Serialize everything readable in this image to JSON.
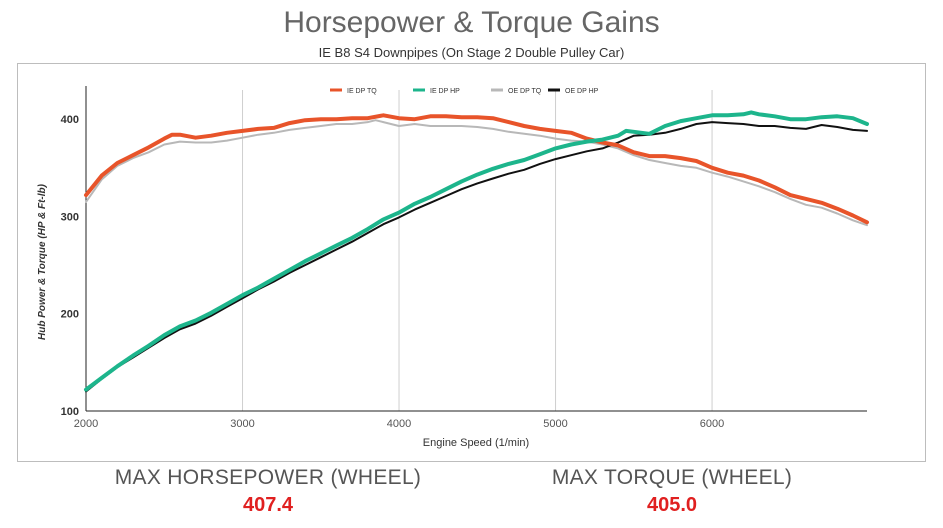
{
  "title": "Horsepower & Torque Gains",
  "subtitle": "IE B8 S4 Downpipes (On Stage 2 Double Pulley Car)",
  "stats": {
    "hp_label": "MAX HORSEPOWER (WHEEL)",
    "hp_value": "407.4",
    "tq_label": "MAX TORQUE (WHEEL)",
    "tq_value": "405.0"
  },
  "chart_data": {
    "type": "line",
    "xlabel": "Engine Speed (1/min)",
    "ylabel": "Hub Power & Torque (HP & Ft-lb)",
    "xlim": [
      2000,
      6990
    ],
    "ylim": [
      100,
      430
    ],
    "xticks": [
      "2000",
      "3000",
      "4000",
      "5000",
      "6000"
    ],
    "yticks": [
      "100",
      "200",
      "300",
      "400"
    ],
    "grid": "vertical",
    "legend_position": "top-center",
    "series": [
      {
        "name": "IE DP TQ",
        "color": "#e8542a",
        "points": [
          [
            2000,
            322
          ],
          [
            2100,
            342
          ],
          [
            2200,
            355
          ],
          [
            2300,
            363
          ],
          [
            2400,
            371
          ],
          [
            2500,
            380
          ],
          [
            2550,
            384
          ],
          [
            2600,
            384
          ],
          [
            2700,
            381
          ],
          [
            2800,
            383
          ],
          [
            2900,
            386
          ],
          [
            3000,
            388
          ],
          [
            3100,
            390
          ],
          [
            3200,
            391
          ],
          [
            3300,
            396
          ],
          [
            3400,
            399
          ],
          [
            3500,
            400
          ],
          [
            3600,
            400
          ],
          [
            3700,
            401
          ],
          [
            3800,
            401
          ],
          [
            3900,
            404
          ],
          [
            4000,
            401
          ],
          [
            4100,
            400
          ],
          [
            4200,
            403
          ],
          [
            4300,
            403
          ],
          [
            4400,
            402
          ],
          [
            4500,
            402
          ],
          [
            4600,
            401
          ],
          [
            4700,
            397
          ],
          [
            4800,
            393
          ],
          [
            4900,
            390
          ],
          [
            5000,
            388
          ],
          [
            5100,
            386
          ],
          [
            5200,
            380
          ],
          [
            5300,
            376
          ],
          [
            5400,
            373
          ],
          [
            5500,
            366
          ],
          [
            5600,
            362
          ],
          [
            5700,
            362
          ],
          [
            5800,
            360
          ],
          [
            5900,
            357
          ],
          [
            6000,
            350
          ],
          [
            6100,
            345
          ],
          [
            6200,
            342
          ],
          [
            6300,
            337
          ],
          [
            6400,
            330
          ],
          [
            6500,
            322
          ],
          [
            6600,
            318
          ],
          [
            6700,
            314
          ],
          [
            6800,
            308
          ],
          [
            6900,
            301
          ],
          [
            6990,
            294
          ]
        ]
      },
      {
        "name": "IE DP HP",
        "color": "#1db58c",
        "points": [
          [
            2000,
            122
          ],
          [
            2100,
            134
          ],
          [
            2200,
            146
          ],
          [
            2300,
            157
          ],
          [
            2400,
            167
          ],
          [
            2500,
            178
          ],
          [
            2600,
            187
          ],
          [
            2700,
            193
          ],
          [
            2800,
            201
          ],
          [
            2900,
            210
          ],
          [
            3000,
            219
          ],
          [
            3100,
            227
          ],
          [
            3200,
            236
          ],
          [
            3300,
            245
          ],
          [
            3400,
            254
          ],
          [
            3500,
            262
          ],
          [
            3600,
            270
          ],
          [
            3700,
            278
          ],
          [
            3800,
            287
          ],
          [
            3900,
            297
          ],
          [
            4000,
            304
          ],
          [
            4100,
            313
          ],
          [
            4200,
            320
          ],
          [
            4300,
            328
          ],
          [
            4400,
            336
          ],
          [
            4500,
            343
          ],
          [
            4600,
            349
          ],
          [
            4700,
            354
          ],
          [
            4800,
            358
          ],
          [
            4900,
            364
          ],
          [
            5000,
            370
          ],
          [
            5100,
            374
          ],
          [
            5200,
            377
          ],
          [
            5300,
            379
          ],
          [
            5400,
            383
          ],
          [
            5450,
            388
          ],
          [
            5500,
            387
          ],
          [
            5600,
            385
          ],
          [
            5700,
            393
          ],
          [
            5800,
            398
          ],
          [
            5900,
            401
          ],
          [
            6000,
            404
          ],
          [
            6100,
            404
          ],
          [
            6200,
            405
          ],
          [
            6250,
            407
          ],
          [
            6300,
            405
          ],
          [
            6400,
            403
          ],
          [
            6500,
            400
          ],
          [
            6600,
            400
          ],
          [
            6700,
            402
          ],
          [
            6800,
            403
          ],
          [
            6900,
            401
          ],
          [
            6990,
            395
          ]
        ]
      },
      {
        "name": "OE DP TQ",
        "color": "#b8b8b8",
        "points": [
          [
            2000,
            315
          ],
          [
            2100,
            338
          ],
          [
            2200,
            352
          ],
          [
            2300,
            360
          ],
          [
            2400,
            366
          ],
          [
            2500,
            374
          ],
          [
            2600,
            377
          ],
          [
            2700,
            376
          ],
          [
            2800,
            376
          ],
          [
            2900,
            378
          ],
          [
            3000,
            381
          ],
          [
            3100,
            384
          ],
          [
            3200,
            386
          ],
          [
            3300,
            389
          ],
          [
            3400,
            391
          ],
          [
            3500,
            393
          ],
          [
            3600,
            395
          ],
          [
            3700,
            395
          ],
          [
            3800,
            397
          ],
          [
            3850,
            399
          ],
          [
            3900,
            397
          ],
          [
            4000,
            393
          ],
          [
            4100,
            395
          ],
          [
            4200,
            393
          ],
          [
            4300,
            393
          ],
          [
            4400,
            393
          ],
          [
            4500,
            392
          ],
          [
            4600,
            390
          ],
          [
            4700,
            387
          ],
          [
            4800,
            385
          ],
          [
            4900,
            383
          ],
          [
            5000,
            380
          ],
          [
            5100,
            378
          ],
          [
            5200,
            377
          ],
          [
            5300,
            374
          ],
          [
            5400,
            370
          ],
          [
            5500,
            363
          ],
          [
            5600,
            358
          ],
          [
            5700,
            355
          ],
          [
            5800,
            352
          ],
          [
            5900,
            350
          ],
          [
            6000,
            345
          ],
          [
            6100,
            341
          ],
          [
            6200,
            336
          ],
          [
            6300,
            331
          ],
          [
            6400,
            325
          ],
          [
            6500,
            318
          ],
          [
            6600,
            312
          ],
          [
            6700,
            309
          ],
          [
            6800,
            303
          ],
          [
            6900,
            296
          ],
          [
            6990,
            291
          ]
        ]
      },
      {
        "name": "OE DP HP",
        "color": "#111111",
        "points": [
          [
            2000,
            120
          ],
          [
            2100,
            133
          ],
          [
            2200,
            145
          ],
          [
            2300,
            155
          ],
          [
            2400,
            165
          ],
          [
            2500,
            175
          ],
          [
            2600,
            184
          ],
          [
            2700,
            190
          ],
          [
            2800,
            198
          ],
          [
            2900,
            207
          ],
          [
            3000,
            216
          ],
          [
            3100,
            225
          ],
          [
            3200,
            233
          ],
          [
            3300,
            242
          ],
          [
            3400,
            250
          ],
          [
            3500,
            258
          ],
          [
            3600,
            266
          ],
          [
            3700,
            274
          ],
          [
            3800,
            283
          ],
          [
            3900,
            292
          ],
          [
            4000,
            299
          ],
          [
            4100,
            307
          ],
          [
            4200,
            314
          ],
          [
            4300,
            321
          ],
          [
            4400,
            328
          ],
          [
            4500,
            334
          ],
          [
            4600,
            339
          ],
          [
            4700,
            344
          ],
          [
            4800,
            348
          ],
          [
            4900,
            354
          ],
          [
            5000,
            359
          ],
          [
            5100,
            363
          ],
          [
            5200,
            367
          ],
          [
            5300,
            370
          ],
          [
            5400,
            376
          ],
          [
            5500,
            383
          ],
          [
            5600,
            384
          ],
          [
            5700,
            386
          ],
          [
            5800,
            390
          ],
          [
            5900,
            395
          ],
          [
            6000,
            397
          ],
          [
            6100,
            396
          ],
          [
            6200,
            395
          ],
          [
            6300,
            393
          ],
          [
            6400,
            393
          ],
          [
            6500,
            391
          ],
          [
            6600,
            390
          ],
          [
            6700,
            394
          ],
          [
            6800,
            392
          ],
          [
            6900,
            389
          ],
          [
            6990,
            388
          ]
        ]
      }
    ]
  }
}
